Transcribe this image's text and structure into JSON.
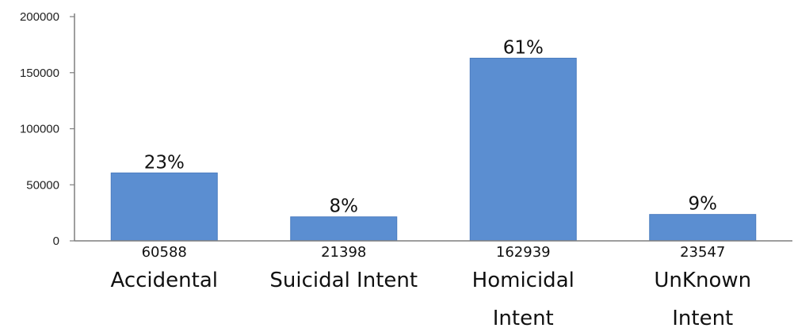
{
  "chart_data": {
    "type": "bar",
    "categories": [
      [
        "Accidental"
      ],
      [
        "Suicidal Intent"
      ],
      [
        "Homicidal",
        "Intent"
      ],
      [
        "UnKnown",
        "Intent"
      ]
    ],
    "values": [
      60588,
      21398,
      162939,
      23547
    ],
    "value_labels": [
      "60588",
      "21398",
      "162939",
      "23547"
    ],
    "percent_labels": [
      "23%",
      "8%",
      "61%",
      "9%"
    ],
    "ylim": [
      0,
      200000
    ],
    "yticks": [
      0,
      50000,
      100000,
      150000,
      200000
    ],
    "grid": false,
    "legend": "none",
    "colors": {
      "bar": "#5b8ed1",
      "bar_edge": "#4a7cbf",
      "axis": "#7f7f7f"
    }
  }
}
